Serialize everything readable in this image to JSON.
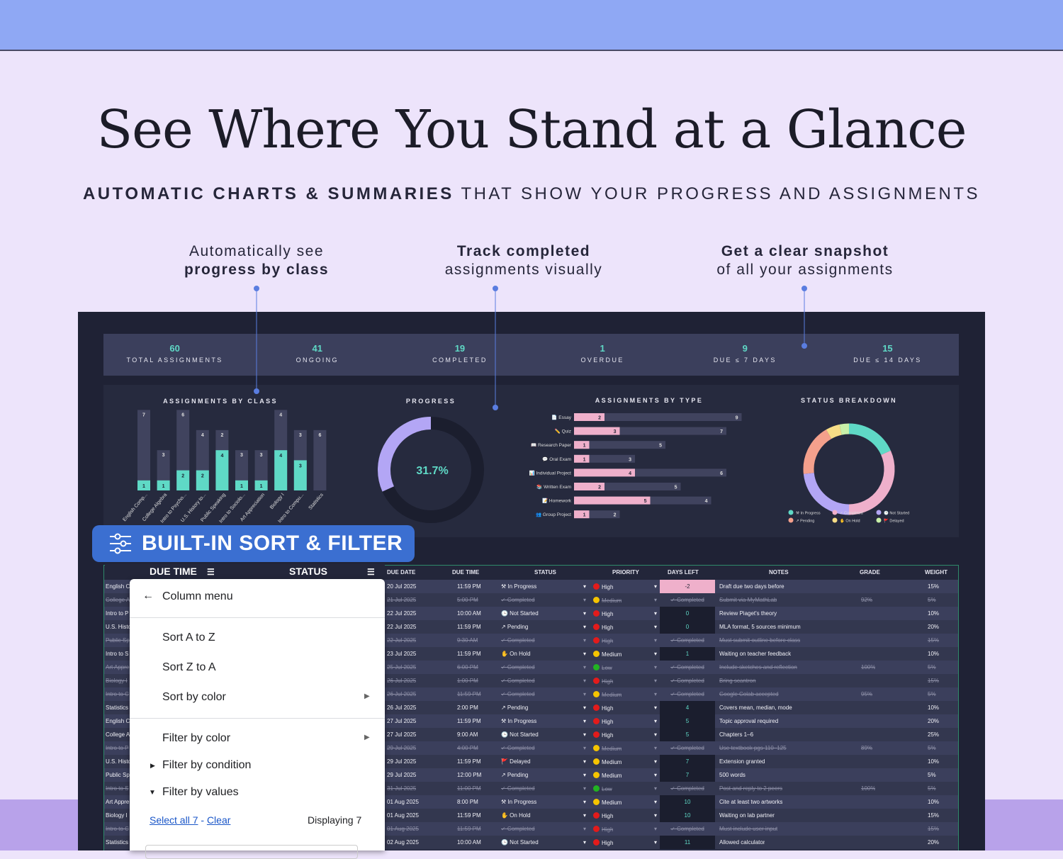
{
  "hero": {
    "title": "See Where You Stand at a Glance",
    "subtitle_bold": "AUTOMATIC CHARTS & SUMMARIES",
    "subtitle_rest": " THAT SHOW YOUR PROGRESS AND ASSIGNMENTS"
  },
  "callouts": [
    {
      "line1": "Automatically see",
      "line2": "progress by class",
      "bold": 2
    },
    {
      "line1": "Track completed",
      "line2": "assignments visually",
      "bold": 1
    },
    {
      "line1": "Get a clear snapshot",
      "line2": "of all your assignments",
      "bold": 1
    }
  ],
  "stats": [
    {
      "value": "60",
      "label": "TOTAL ASSIGNMENTS"
    },
    {
      "value": "41",
      "label": "ONGOING"
    },
    {
      "value": "19",
      "label": "COMPLETED"
    },
    {
      "value": "1",
      "label": "OVERDUE"
    },
    {
      "value": "9",
      "label": "DUE ≤ 7 DAYS"
    },
    {
      "value": "15",
      "label": "DUE ≤ 14 DAYS"
    }
  ],
  "colors": {
    "teal": "#5fd9c6",
    "pink": "#efb0cb",
    "purple": "#b3a6f5",
    "badge": "#3b6fd1"
  },
  "chart_data": [
    {
      "type": "bar",
      "title": "ASSIGNMENTS BY CLASS",
      "stacked": true,
      "categories": [
        "English Comp...",
        "College Algebra",
        "Intro to Psycho...",
        "U.S. History to...",
        "Public Speaking",
        "Intro to Sociolo...",
        "Art Appreciation",
        "Biology I",
        "Intro to Compu...",
        "Statistics"
      ],
      "series": [
        {
          "values": [
            1,
            1,
            2,
            2,
            4,
            1,
            1,
            4,
            3,
            0
          ],
          "color": "#5fd9c6"
        },
        {
          "values": [
            7,
            3,
            6,
            4,
            2,
            3,
            3,
            4,
            3,
            6
          ],
          "color": "#40435e"
        }
      ]
    },
    {
      "type": "pie",
      "title": "PROGRESS",
      "center_label": "31.7%",
      "values": [
        31.7,
        68.3
      ],
      "colors": [
        "#b3a6f5",
        "#1b1e2e"
      ]
    },
    {
      "type": "bar",
      "orientation": "horizontal",
      "stacked": true,
      "title": "ASSIGNMENTS BY TYPE",
      "categories": [
        "📄 Essay",
        "✏️ Quiz",
        "📖 Research Paper",
        "💬 Oral Exam",
        "📊 Individual Project",
        "📚 Written Exam",
        "📝 Homework",
        "👥 Group Project"
      ],
      "series": [
        {
          "values": [
            2,
            3,
            1,
            1,
            4,
            2,
            5,
            1
          ],
          "color": "#efb0cb"
        },
        {
          "values": [
            9,
            7,
            5,
            3,
            6,
            5,
            4,
            2
          ],
          "color": "#40435e"
        }
      ]
    },
    {
      "type": "pie",
      "title": "STATUS BREAKDOWN",
      "legend": "bottom",
      "categories": [
        "In Progress",
        "Completed",
        "Not Started",
        "Pending",
        "On Hold",
        "Delayed"
      ],
      "legend_labels": [
        "⚒ In Progress",
        "✓ Completed",
        "🕒 Not Started",
        "↗ Pending",
        "✋ On Hold",
        "🚩 Delayed"
      ],
      "values": [
        11,
        19,
        14,
        11,
        3,
        2
      ],
      "colors": [
        "#5fd9c6",
        "#efb0cb",
        "#b3a6f5",
        "#f4a08c",
        "#f7dd86",
        "#c8f0a8"
      ]
    }
  ],
  "badge": {
    "label": "BUILT-IN SORT & FILTER"
  },
  "bighead": {
    "due_time": "DUE TIME",
    "status": "STATUS"
  },
  "table": {
    "headers": [
      "DUE DATE",
      "DUE TIME",
      "STATUS",
      "PRIORITY",
      "DAYS LEFT",
      "NOTES",
      "GRADE",
      "WEIGHT"
    ],
    "rows": [
      {
        "cls": "English C",
        "date": "20 Jul 2025",
        "time": "11:59 PM",
        "status": "⚒ In Progress",
        "priority": "High",
        "days": "-2",
        "notes": "Draft due two days before",
        "grade": "",
        "weight": "15%",
        "done": false
      },
      {
        "cls": "College A",
        "date": "21 Jul 2025",
        "time": "5:00 PM",
        "status": "✓ Completed",
        "priority": "Medium",
        "days": "✓ Completed",
        "notes": "Submit via MyMathLab",
        "grade": "92%",
        "weight": "5%",
        "done": true
      },
      {
        "cls": "Intro to P",
        "date": "22 Jul 2025",
        "time": "10:00 AM",
        "status": "🕒 Not Started",
        "priority": "High",
        "days": "0",
        "notes": "Review Piaget's theory",
        "grade": "",
        "weight": "10%",
        "done": false
      },
      {
        "cls": "U.S. Histo",
        "date": "22 Jul 2025",
        "time": "11:59 PM",
        "status": "↗ Pending",
        "priority": "High",
        "days": "0",
        "notes": "MLA format, 5 sources minimum",
        "grade": "",
        "weight": "20%",
        "done": false
      },
      {
        "cls": "Public Sp",
        "date": "22 Jul 2025",
        "time": "9:30 AM",
        "status": "✓ Completed",
        "priority": "High",
        "days": "✓ Completed",
        "notes": "Must submit outline before class",
        "grade": "",
        "weight": "15%",
        "done": true
      },
      {
        "cls": "Intro to S",
        "date": "23 Jul 2025",
        "time": "11:59 PM",
        "status": "✋ On Hold",
        "priority": "Medium",
        "days": "1",
        "notes": "Waiting on teacher feedback",
        "grade": "",
        "weight": "10%",
        "done": false
      },
      {
        "cls": "Art Appre",
        "date": "25 Jul 2025",
        "time": "6:00 PM",
        "status": "✓ Completed",
        "priority": "Low",
        "days": "✓ Completed",
        "notes": "Include sketches and reflection",
        "grade": "100%",
        "weight": "5%",
        "done": true
      },
      {
        "cls": "Biology I",
        "date": "26 Jul 2025",
        "time": "1:00 PM",
        "status": "✓ Completed",
        "priority": "High",
        "days": "✓ Completed",
        "notes": "Bring scantron",
        "grade": "",
        "weight": "15%",
        "done": true
      },
      {
        "cls": "Intro to C",
        "date": "26 Jul 2025",
        "time": "11:59 PM",
        "status": "✓ Completed",
        "priority": "Medium",
        "days": "✓ Completed",
        "notes": "Google Colab accepted",
        "grade": "95%",
        "weight": "5%",
        "done": true
      },
      {
        "cls": "Statistics",
        "date": "26 Jul 2025",
        "time": "2:00 PM",
        "status": "↗ Pending",
        "priority": "High",
        "days": "4",
        "notes": "Covers mean, median, mode",
        "grade": "",
        "weight": "10%",
        "done": false
      },
      {
        "cls": "English C",
        "date": "27 Jul 2025",
        "time": "11:59 PM",
        "status": "⚒ In Progress",
        "priority": "High",
        "days": "5",
        "notes": "Topic approval required",
        "grade": "",
        "weight": "20%",
        "done": false
      },
      {
        "cls": "College A",
        "date": "27 Jul 2025",
        "time": "9:00 AM",
        "status": "🕒 Not Started",
        "priority": "High",
        "days": "5",
        "notes": "Chapters 1–6",
        "grade": "",
        "weight": "25%",
        "done": false
      },
      {
        "cls": "Intro to P",
        "date": "29 Jul 2025",
        "time": "4:00 PM",
        "status": "✓ Completed",
        "priority": "Medium",
        "days": "✓ Completed",
        "notes": "Use textbook pgs 110–125",
        "grade": "89%",
        "weight": "5%",
        "done": true
      },
      {
        "cls": "U.S. Histo",
        "date": "29 Jul 2025",
        "time": "11:59 PM",
        "status": "🚩 Delayed",
        "priority": "Medium",
        "days": "7",
        "notes": "Extension granted",
        "grade": "",
        "weight": "10%",
        "done": false
      },
      {
        "cls": "Public Sp",
        "date": "29 Jul 2025",
        "time": "12:00 PM",
        "status": "↗ Pending",
        "priority": "Medium",
        "days": "7",
        "notes": "500 words",
        "grade": "",
        "weight": "5%",
        "done": false
      },
      {
        "cls": "Intro to S",
        "date": "31 Jul 2025",
        "time": "11:00 PM",
        "status": "✓ Completed",
        "priority": "Low",
        "days": "✓ Completed",
        "notes": "Post and reply to 2 peers",
        "grade": "100%",
        "weight": "5%",
        "done": true
      },
      {
        "cls": "Art Appre",
        "date": "01 Aug 2025",
        "time": "8:00 PM",
        "status": "⚒ In Progress",
        "priority": "Medium",
        "days": "10",
        "notes": "Cite at least two artworks",
        "grade": "",
        "weight": "10%",
        "done": false
      },
      {
        "cls": "Biology I",
        "date": "01 Aug 2025",
        "time": "11:59 PM",
        "status": "✋ On Hold",
        "priority": "High",
        "days": "10",
        "notes": "Waiting on lab partner",
        "grade": "",
        "weight": "15%",
        "done": false
      },
      {
        "cls": "Intro to C",
        "date": "01 Aug 2025",
        "time": "11:59 PM",
        "status": "✓ Completed",
        "priority": "High",
        "days": "✓ Completed",
        "notes": "Must include user input",
        "grade": "",
        "weight": "15%",
        "done": true
      },
      {
        "cls": "Statistics",
        "date": "02 Aug 2025",
        "time": "10:00 AM",
        "status": "🕒 Not Started",
        "priority": "High",
        "days": "11",
        "notes": "Allowed calculator",
        "grade": "",
        "weight": "20%",
        "done": false
      }
    ],
    "priority_colors": {
      "High": "#e31b1b",
      "Medium": "#f5c400",
      "Low": "#22b322"
    }
  },
  "menu": {
    "back": "Column menu",
    "sort_az": "Sort A to Z",
    "sort_za": "Sort Z to A",
    "sort_color": "Sort by color",
    "filter_color": "Filter by color",
    "filter_condition": "Filter by condition",
    "filter_values": "Filter by values",
    "select_all": "Select all 7",
    "dash": " - ",
    "clear": "Clear",
    "displaying": "Displaying 7"
  }
}
